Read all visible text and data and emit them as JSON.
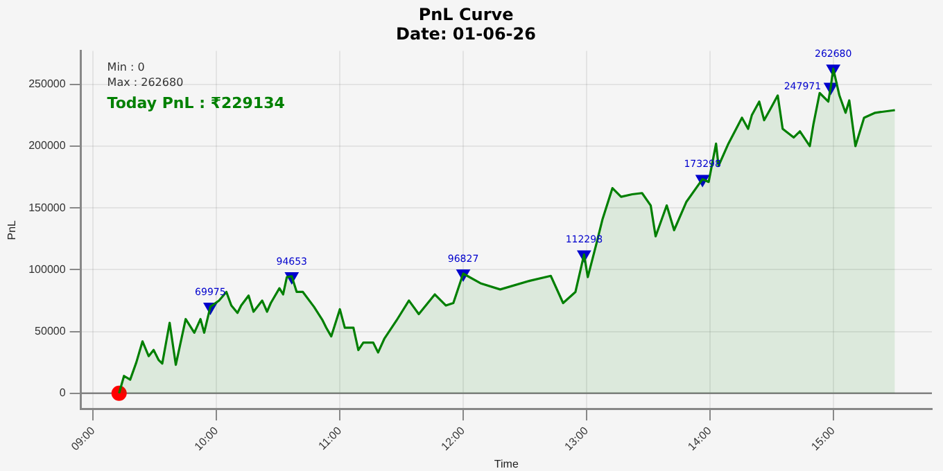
{
  "chart_data": {
    "type": "area",
    "title": "PnL Curve\nDate: 01-06-26",
    "xlabel": "Time",
    "ylabel": "PnL",
    "annotations": [
      "Min : 0",
      "Max : 262680",
      "Today PnL : ₹229134"
    ],
    "xlim": [
      8.9,
      15.8
    ],
    "xticks": [
      {
        "value": 9,
        "label": "09:00"
      },
      {
        "value": 10,
        "label": "10:00"
      },
      {
        "value": 11,
        "label": "11:00"
      },
      {
        "value": 12,
        "label": "12:00"
      },
      {
        "value": 13,
        "label": "13:00"
      },
      {
        "value": 14,
        "label": "14:00"
      },
      {
        "value": 15,
        "label": "15:00"
      }
    ],
    "ylim": [
      -13000,
      277000
    ],
    "yticks": [
      0,
      50000,
      100000,
      150000,
      200000,
      250000
    ],
    "grid": true,
    "ref_lines": [
      {
        "axis": "y",
        "value": 0,
        "color": "#808080"
      }
    ],
    "series": [
      {
        "color": "#007f00",
        "marker": "none",
        "x": [
          9.21,
          9.25,
          9.3,
          9.35,
          9.4,
          9.45,
          9.49,
          9.53,
          9.56,
          9.62,
          9.67,
          9.75,
          9.82,
          9.87,
          9.9,
          9.95,
          10.02,
          10.08,
          10.12,
          10.17,
          10.2,
          10.26,
          10.3,
          10.37,
          10.41,
          10.44,
          10.51,
          10.54,
          10.57,
          10.61,
          10.65,
          10.7,
          10.79,
          10.86,
          10.89,
          10.93,
          11.0,
          11.04,
          11.11,
          11.15,
          11.19,
          11.27,
          11.31,
          11.36,
          11.46,
          11.56,
          11.64,
          11.77,
          11.86,
          11.92,
          12.0,
          12.14,
          12.3,
          12.54,
          12.71,
          12.81,
          12.91,
          12.98,
          13.01,
          13.08,
          13.13,
          13.21,
          13.28,
          13.37,
          13.45,
          13.52,
          13.56,
          13.65,
          13.71,
          13.81,
          13.94,
          13.99,
          14.05,
          14.07,
          14.15,
          14.26,
          14.31,
          14.34,
          14.4,
          14.44,
          14.49,
          14.55,
          14.59,
          14.68,
          14.73,
          14.81,
          14.84,
          14.89,
          14.96,
          14.98,
          15.0,
          15.05,
          15.1,
          15.13,
          15.18,
          15.25,
          15.34,
          15.5
        ],
        "values": [
          0,
          14000,
          11000,
          25000,
          42000,
          30000,
          35000,
          27000,
          24000,
          57000,
          23000,
          60000,
          49000,
          60000,
          49000,
          69975,
          75000,
          82000,
          71000,
          65000,
          71000,
          79000,
          66000,
          75000,
          66000,
          73000,
          85000,
          80000,
          94000,
          94653,
          82000,
          82000,
          70000,
          59000,
          53000,
          46000,
          68000,
          53000,
          53000,
          35000,
          41000,
          41000,
          33000,
          44000,
          59000,
          75000,
          64000,
          80000,
          71000,
          73000,
          96827,
          89000,
          84000,
          91000,
          95000,
          73000,
          82000,
          112298,
          94000,
          121000,
          141000,
          166000,
          159000,
          161000,
          162000,
          152000,
          127000,
          152000,
          132000,
          155000,
          173298,
          171000,
          202000,
          184000,
          202000,
          223000,
          214000,
          225000,
          236000,
          221000,
          230000,
          241000,
          214000,
          207000,
          212000,
          200000,
          218000,
          243000,
          236000,
          247971,
          262680,
          241000,
          227000,
          237000,
          200000,
          223000,
          227000,
          229134
        ]
      },
      {
        "type": "scatter",
        "color": "#0000cd",
        "marker": "triangle",
        "x": [
          9.95,
          10.61,
          12.0,
          12.98,
          13.94,
          14.98,
          15.0
        ],
        "values": [
          69975,
          94653,
          96827,
          112298,
          173298,
          247971,
          262680
        ],
        "value_labels": [
          "69975",
          "94653",
          "96827",
          "112298",
          "173298",
          "247971",
          "262680"
        ]
      },
      {
        "type": "scatter",
        "color": "#ff0000",
        "marker": "circle",
        "x": [
          9.21
        ],
        "values": [
          0
        ]
      }
    ]
  }
}
